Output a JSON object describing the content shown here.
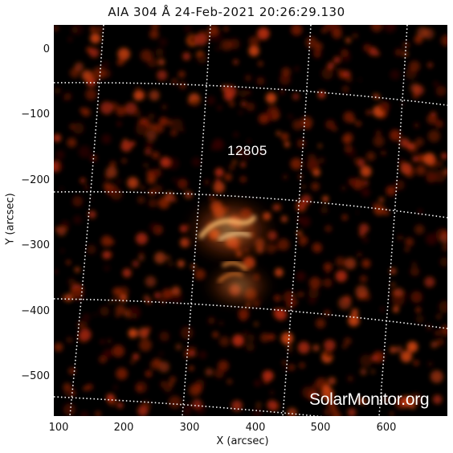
{
  "title": "AIA 304 Å 24-Feb-2021 20:26:29.130",
  "region_label": "12805",
  "watermark": "SolarMonitor.org",
  "axes": {
    "xlabel": "X (arcsec)",
    "ylabel": "Y (arcsec)",
    "xticks": [
      "100",
      "200",
      "300",
      "400",
      "500",
      "600"
    ],
    "yticks": [
      "0",
      "−100",
      "−200",
      "−300",
      "−400",
      "−500"
    ]
  },
  "colors": {
    "background": "#000000",
    "emission": "#b22a0a",
    "bright_emission": "#ffb060",
    "grid": "#ffffff"
  }
}
